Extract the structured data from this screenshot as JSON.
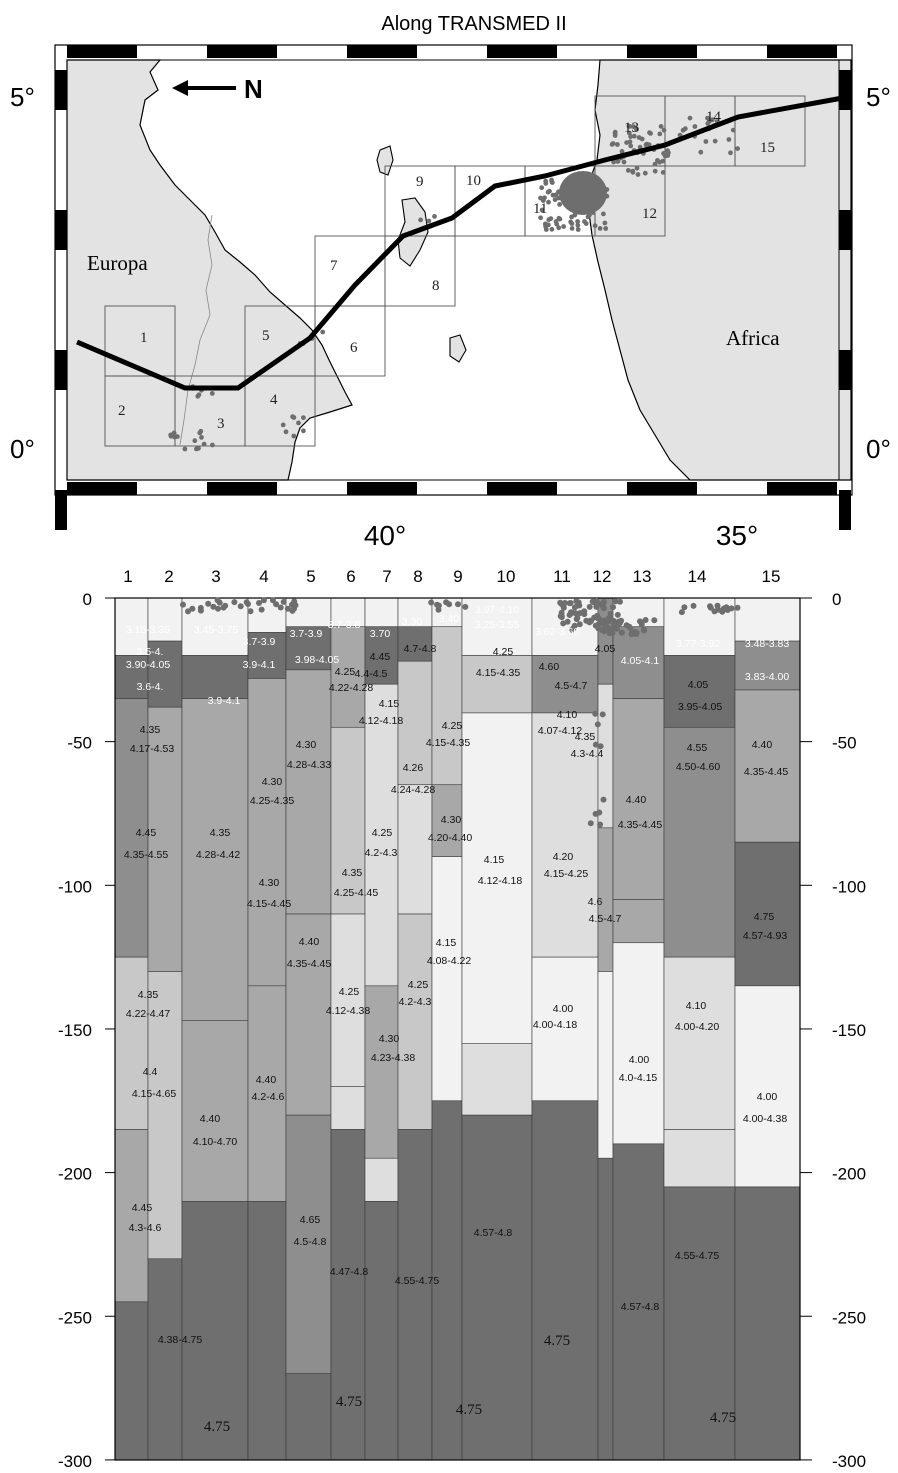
{
  "title": "Along TRANSMED II",
  "map": {
    "north_label": "N",
    "lat_left": [
      "5°",
      "0°"
    ],
    "lat_right": [
      "5°",
      "0°"
    ],
    "lon_labels": [
      "40°",
      "35°"
    ],
    "regions": [
      "Europa",
      "Africa"
    ],
    "box_numbers": [
      "1",
      "2",
      "3",
      "4",
      "5",
      "6",
      "7",
      "8",
      "9",
      "10",
      "11",
      "12",
      "13",
      "14",
      "15"
    ]
  },
  "section": {
    "column_numbers": [
      "1",
      "2",
      "3",
      "4",
      "5",
      "6",
      "7",
      "8",
      "9",
      "10",
      "11",
      "12",
      "13",
      "14",
      "15"
    ],
    "depth_ticks": [
      "0",
      "-50",
      "-100",
      "-150",
      "-200",
      "-250",
      "-300"
    ],
    "velocity_labels": [
      "3.15-3.35",
      "3.45-3.75",
      "3.5-4.",
      "3.90-4.05",
      "3.6-4.",
      "3.7-3.9",
      "3.9-4.1",
      "3.9-4.1",
      "3.7-3.9",
      "3.98-4.05",
      "3.7-3.8",
      "3.70",
      "3.30",
      "3.40",
      "3.97-4.10",
      "3.25-3.55",
      "3.62-3.60",
      "3.77-3.92",
      "3.48-3.83",
      "3.83-4.00",
      "4.05-4.1",
      "4.05",
      "4.45",
      "4.4-4.5",
      "4.7-4.8",
      "4.25",
      "4.15-4.35",
      "4.60",
      "4.5-4.7",
      "4.05",
      "3.95-4.05",
      "4.35",
      "4.17-4.53",
      "4.30",
      "4.28-4.33",
      "4.25",
      "4.22-4.28",
      "4.15",
      "4.12-4.18",
      "4.25",
      "4.15-4.35",
      "4.10",
      "4.07-4.12",
      "4.35",
      "4.3-4.4",
      "4.40",
      "4.35-4.45",
      "4.55",
      "4.50-4.60",
      "4.30",
      "4.25-4.35",
      "4.26",
      "4.24-4.28",
      "4.40",
      "4.35-4.45",
      "4.45",
      "4.35-4.55",
      "4.35",
      "4.28-4.42",
      "4.25",
      "4.2-4.3",
      "4.30",
      "4.20-4.40",
      "4.30",
      "4.15-4.45",
      "4.35",
      "4.25-4.45",
      "4.15",
      "4.12-4.18",
      "4.20",
      "4.15-4.25",
      "4.6",
      "4.5-4.7",
      "4.75",
      "4.57-4.93",
      "4.40",
      "4.35-4.45",
      "4.15",
      "4.08-4.22",
      "4.35",
      "4.22-4.47",
      "4.25",
      "4.12-4.38",
      "4.25",
      "4.2-4.3",
      "4.00",
      "4.00-4.18",
      "4.10",
      "4.00-4.20",
      "4.30",
      "4.23-4.38",
      "4.00",
      "4.0-4.15",
      "4.4",
      "4.15-4.65",
      "4.40",
      "4.2-4.6",
      "4.40",
      "4.10-4.70",
      "4.00",
      "4.00-4.38",
      "4.45",
      "4.3-4.6",
      "4.65",
      "4.5-4.8",
      "4.57-4.8",
      "4.47-4.8",
      "4.55-4.75",
      "4.55-4.75",
      "4.57-4.8",
      "4.38-4.75",
      "4.75",
      "4.75",
      "4.75",
      "4.75",
      "4.75"
    ]
  },
  "colors": {
    "sea": "#ffffff",
    "land": "#e3e3e3",
    "route": "#000000",
    "seismicity": "#6e6e6e"
  }
}
